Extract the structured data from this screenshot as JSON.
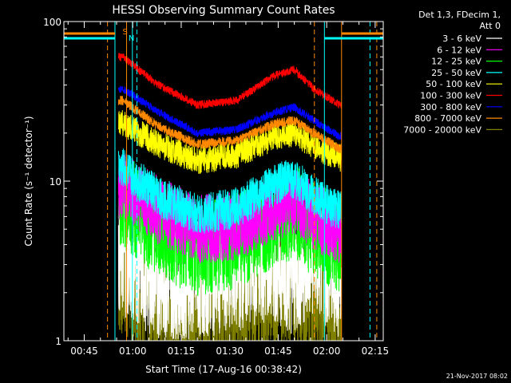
{
  "chart_data": {
    "type": "line",
    "title": "HESSI Observing Summary Count Rates",
    "xlabel": "Start Time (17-Aug-16 00:38:42)",
    "ylabel": "Count Rate (s⁻¹ detector⁻¹)",
    "y_scale": "log",
    "ylim": [
      1,
      100
    ],
    "xlim_minutes": [
      38.7,
      137.5
    ],
    "x_ticks": [
      {
        "label": "00:45",
        "minute": 45
      },
      {
        "label": "01:00",
        "minute": 60
      },
      {
        "label": "01:15",
        "minute": 75
      },
      {
        "label": "01:30",
        "minute": 90
      },
      {
        "label": "01:45",
        "minute": 105
      },
      {
        "label": "02:00",
        "minute": 120
      },
      {
        "label": "02:15",
        "minute": 135
      }
    ],
    "y_ticks": [
      {
        "label": "1",
        "value": 1
      },
      {
        "label": "10",
        "value": 10
      },
      {
        "label": "100",
        "value": 100
      }
    ],
    "legend_header": [
      "Det 1,3, FDecim 1,",
      "Att 0"
    ],
    "legend_position": "right, outside plot",
    "series": [
      {
        "name": "3 - 6 keV",
        "color": "#ffffff",
        "level": [
          3.5,
          2.5,
          2.5,
          2.8,
          3.2,
          2.6,
          3.5,
          2.5
        ],
        "spread": 0.9
      },
      {
        "name": "6 - 12 keV",
        "color": "#ff00ff",
        "level": [
          9.5,
          6.5,
          5.0,
          5.2,
          6.8,
          7.5,
          6.0,
          5.0
        ],
        "spread": 0.5
      },
      {
        "name": "12 - 25 keV",
        "color": "#00ff00",
        "level": [
          7.5,
          5.0,
          3.8,
          4.2,
          5.8,
          6.5,
          5.0,
          4.0
        ],
        "spread": 0.7
      },
      {
        "name": "25 - 50 keV",
        "color": "#00ffff",
        "level": [
          12.0,
          8.0,
          6.2,
          6.8,
          9.5,
          10.5,
          8.0,
          6.5
        ],
        "spread": 0.3
      },
      {
        "name": "50 - 100 keV",
        "color": "#ffff00",
        "level": [
          23.0,
          17.0,
          13.5,
          14.5,
          19.0,
          20.0,
          16.5,
          14.0
        ],
        "spread": 0.2
      },
      {
        "name": "100 - 300 keV",
        "color": "#ff0000",
        "level": [
          60.0,
          40.0,
          30.0,
          32.0,
          46.0,
          50.0,
          38.0,
          30.0
        ],
        "spread": 0.06
      },
      {
        "name": "300 - 800 keV",
        "color": "#0000ff",
        "level": [
          38.0,
          27.0,
          20.0,
          21.0,
          27.0,
          29.0,
          24.0,
          19.0
        ],
        "spread": 0.06
      },
      {
        "name": "800 - 7000 keV",
        "color": "#ff8800",
        "level": [
          32.0,
          22.0,
          17.0,
          18.0,
          23.0,
          24.0,
          20.0,
          16.0
        ],
        "spread": 0.07
      },
      {
        "name": "7000 - 20000 keV",
        "color": "#808000",
        "level": [
          2.5,
          1.7,
          1.6,
          1.8,
          2.1,
          2.2,
          1.9,
          1.6
        ],
        "spread": 0.9
      }
    ],
    "level_minutes": [
      57,
      68,
      80,
      92,
      104,
      110,
      116,
      124
    ],
    "event_lines": [
      {
        "label": "S",
        "color": "#ff8800",
        "minute": 58.1,
        "dashed": false
      },
      {
        "label": "",
        "color": "#ff8800",
        "minute": 52.2,
        "dashed": true
      },
      {
        "label": "",
        "color": "#ff8800",
        "minute": 116.2,
        "dashed": true
      },
      {
        "label": "",
        "color": "#ff8800",
        "minute": 124.6,
        "dashed": false
      },
      {
        "label": "",
        "color": "#ff8800",
        "minute": 135.5,
        "dashed": true
      },
      {
        "label": "N",
        "color": "#00ffff",
        "minute": 59.9,
        "dashed": false
      },
      {
        "label": "",
        "color": "#00ffff",
        "minute": 54.5,
        "dashed": false
      },
      {
        "label": "",
        "color": "#00ffff",
        "minute": 61.3,
        "dashed": true
      },
      {
        "label": "",
        "color": "#00ffff",
        "minute": 119.3,
        "dashed": false
      },
      {
        "label": "",
        "color": "#00ffff",
        "minute": 133.4,
        "dashed": true
      }
    ],
    "data_span_minutes": [
      55.6,
      124.5
    ],
    "footer_date": "21-Nov-2017 08:02"
  }
}
